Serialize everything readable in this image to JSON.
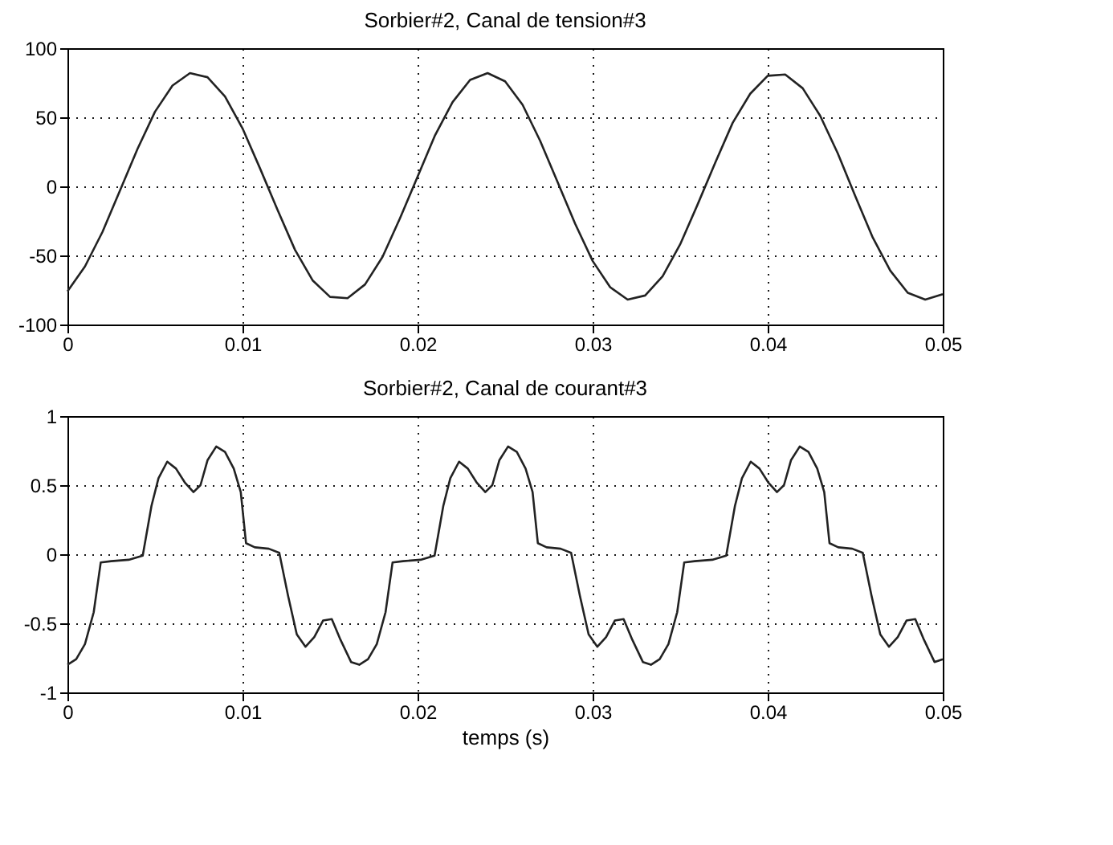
{
  "chart_data": [
    {
      "type": "line",
      "title": "Sorbier#2, Canal de tension#3",
      "xlim": [
        0,
        0.05
      ],
      "xticks": [
        0,
        0.01,
        0.02,
        0.03,
        0.04,
        0.05
      ],
      "ylim": [
        -100,
        100
      ],
      "yticks": [
        -100,
        -50,
        0,
        50,
        100
      ],
      "grid": true,
      "line_style": "solid",
      "series": [
        {
          "color": "#222222",
          "x": [
            0,
            0.001,
            0.002,
            0.003,
            0.004,
            0.005,
            0.006,
            0.007,
            0.008,
            0.009,
            0.01,
            0.011,
            0.012,
            0.013,
            0.014,
            0.015,
            0.016,
            0.017,
            0.018,
            0.019,
            0.02,
            0.021,
            0.022,
            0.023,
            0.024,
            0.025,
            0.026,
            0.027,
            0.028,
            0.029,
            0.03,
            0.031,
            0.032,
            0.033,
            0.034,
            0.035,
            0.036,
            0.037,
            0.038,
            0.039,
            0.04,
            0.041,
            0.042,
            0.043,
            0.044,
            0.045,
            0.046,
            0.047,
            0.048,
            0.049,
            0.05
          ],
          "values": [
            -76,
            -58,
            -33,
            -3,
            27,
            54,
            73,
            82,
            79,
            65,
            42,
            13,
            -17,
            -46,
            -68,
            -80,
            -81,
            -71,
            -51,
            -23,
            7,
            37,
            61,
            77,
            82,
            76,
            59,
            33,
            3,
            -27,
            -54,
            -73,
            -82,
            -79,
            -65,
            -42,
            -13,
            17,
            46,
            67,
            80,
            81,
            71,
            51,
            24,
            -7,
            -37,
            -61,
            -77,
            -82,
            -78
          ]
        }
      ]
    },
    {
      "type": "line",
      "title": "Sorbier#2, Canal de courant#3",
      "xlabel": "temps (s)",
      "xlim": [
        0,
        0.05
      ],
      "xticks": [
        0,
        0.01,
        0.02,
        0.03,
        0.04,
        0.05
      ],
      "ylim": [
        -1,
        1
      ],
      "yticks": [
        -1,
        -0.5,
        0,
        0.5,
        1
      ],
      "grid": true,
      "line_style": "solid",
      "series": [
        {
          "color": "#222222",
          "x": [
            0,
            0.0005,
            0.001,
            0.0015,
            0.0019,
            0.0025,
            0.0035,
            0.0043,
            0.0048,
            0.0052,
            0.0057,
            0.0062,
            0.0067,
            0.0072,
            0.0076,
            0.008,
            0.0085,
            0.009,
            0.0095,
            0.0099,
            0.0102,
            0.0107,
            0.0115,
            0.0121,
            0.0126,
            0.0131,
            0.0136,
            0.0141,
            0.0146,
            0.0151,
            0.0156,
            0.0162,
            0.01667,
            0.01717,
            0.01767,
            0.01817,
            0.01857,
            0.01917,
            0.02017,
            0.02097,
            0.02147,
            0.02187,
            0.02237,
            0.02287,
            0.02337,
            0.02387,
            0.02427,
            0.02467,
            0.02517,
            0.02567,
            0.02617,
            0.02657,
            0.02687,
            0.02737,
            0.02817,
            0.02877,
            0.02927,
            0.02977,
            0.03027,
            0.03077,
            0.03127,
            0.03177,
            0.03227,
            0.03287,
            0.03333,
            0.03383,
            0.03433,
            0.03483,
            0.03523,
            0.03583,
            0.03683,
            0.03763,
            0.03813,
            0.03853,
            0.03903,
            0.03953,
            0.04003,
            0.04053,
            0.04093,
            0.04133,
            0.04183,
            0.04233,
            0.04283,
            0.04323,
            0.04353,
            0.04403,
            0.04483,
            0.04543,
            0.04593,
            0.04643,
            0.04693,
            0.04743,
            0.04793,
            0.04843,
            0.04893,
            0.04953,
            0.05
          ],
          "values": [
            -0.8,
            -0.76,
            -0.65,
            -0.42,
            -0.06,
            -0.05,
            -0.04,
            -0.01,
            0.35,
            0.55,
            0.67,
            0.62,
            0.52,
            0.45,
            0.5,
            0.68,
            0.78,
            0.74,
            0.62,
            0.45,
            0.08,
            0.05,
            0.04,
            0.01,
            -0.3,
            -0.58,
            -0.67,
            -0.6,
            -0.48,
            -0.47,
            -0.62,
            -0.78,
            -0.8,
            -0.76,
            -0.65,
            -0.42,
            -0.06,
            -0.05,
            -0.04,
            -0.01,
            0.35,
            0.55,
            0.67,
            0.62,
            0.52,
            0.45,
            0.5,
            0.68,
            0.78,
            0.74,
            0.62,
            0.45,
            0.08,
            0.05,
            0.04,
            0.01,
            -0.3,
            -0.58,
            -0.67,
            -0.6,
            -0.48,
            -0.47,
            -0.62,
            -0.78,
            -0.8,
            -0.76,
            -0.65,
            -0.42,
            -0.06,
            -0.05,
            -0.04,
            -0.01,
            0.35,
            0.55,
            0.67,
            0.62,
            0.52,
            0.45,
            0.5,
            0.68,
            0.78,
            0.74,
            0.62,
            0.45,
            0.08,
            0.05,
            0.04,
            0.01,
            -0.3,
            -0.58,
            -0.67,
            -0.6,
            -0.48,
            -0.47,
            -0.62,
            -0.78,
            -0.76
          ]
        }
      ]
    }
  ]
}
